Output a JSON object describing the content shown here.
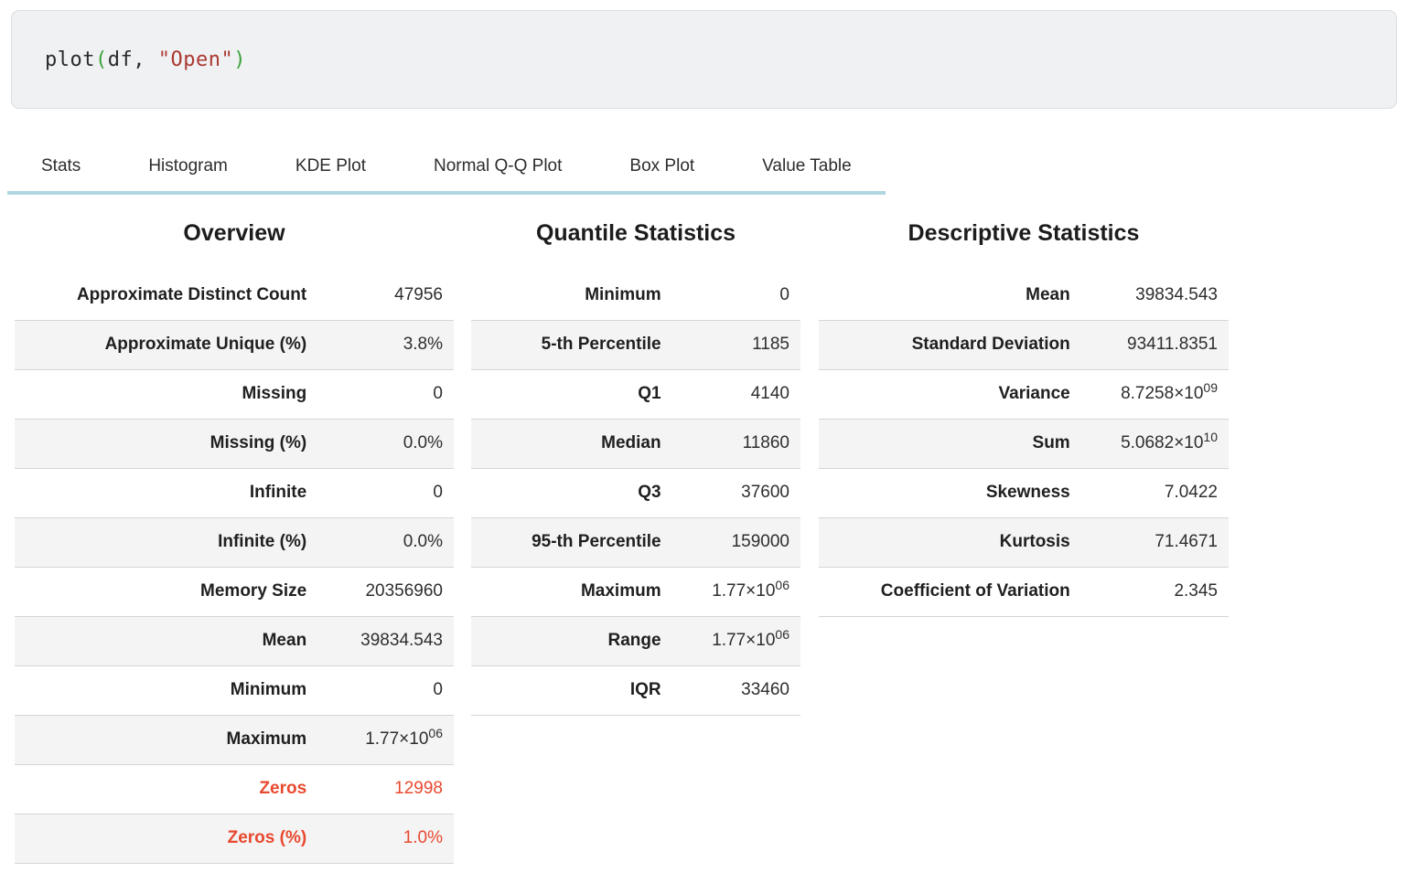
{
  "code_cell": {
    "tokens": [
      {
        "text": "plot",
        "type": "plain"
      },
      {
        "text": "(",
        "type": "paren"
      },
      {
        "text": "df",
        "type": "plain"
      },
      {
        "text": ", ",
        "type": "plain"
      },
      {
        "text": "\"Open\"",
        "type": "string"
      },
      {
        "text": ")",
        "type": "paren"
      }
    ]
  },
  "colors": {
    "code_plain": "#2a2a2a",
    "code_paren": "#3aa13a",
    "code_string": "#ac3931",
    "accent_red": "#e8492f",
    "tab_underline": "#b0d6e2",
    "row_stripe": "#f4f4f5"
  },
  "tabs": [
    {
      "label": "Stats"
    },
    {
      "label": "Histogram"
    },
    {
      "label": "KDE Plot"
    },
    {
      "label": "Normal Q-Q Plot"
    },
    {
      "label": "Box Plot"
    },
    {
      "label": "Value Table"
    }
  ],
  "columns": [
    {
      "title": "Overview",
      "rows": [
        {
          "label": "Approximate Distinct Count",
          "value": "47956"
        },
        {
          "label": "Approximate Unique (%)",
          "value": "3.8%"
        },
        {
          "label": "Missing",
          "value": "0"
        },
        {
          "label": "Missing (%)",
          "value": "0.0%"
        },
        {
          "label": "Infinite",
          "value": "0"
        },
        {
          "label": "Infinite (%)",
          "value": "0.0%"
        },
        {
          "label": "Memory Size",
          "value": "20356960"
        },
        {
          "label": "Mean",
          "value": "39834.543"
        },
        {
          "label": "Minimum",
          "value": "0"
        },
        {
          "label": "Maximum",
          "value": "1.77×10",
          "sup": "06"
        },
        {
          "label": "Zeros",
          "value": "12998",
          "accent": true
        },
        {
          "label": "Zeros (%)",
          "value": "1.0%",
          "accent": true
        }
      ]
    },
    {
      "title": "Quantile Statistics",
      "rows": [
        {
          "label": "Minimum",
          "value": "0"
        },
        {
          "label": "5-th Percentile",
          "value": "1185"
        },
        {
          "label": "Q1",
          "value": "4140"
        },
        {
          "label": "Median",
          "value": "11860"
        },
        {
          "label": "Q3",
          "value": "37600"
        },
        {
          "label": "95-th Percentile",
          "value": "159000"
        },
        {
          "label": "Maximum",
          "value": "1.77×10",
          "sup": "06"
        },
        {
          "label": "Range",
          "value": "1.77×10",
          "sup": "06"
        },
        {
          "label": "IQR",
          "value": "33460"
        }
      ]
    },
    {
      "title": "Descriptive Statistics",
      "rows": [
        {
          "label": "Mean",
          "value": "39834.543"
        },
        {
          "label": "Standard Deviation",
          "value": "93411.8351"
        },
        {
          "label": "Variance",
          "value": "8.7258×10",
          "sup": "09"
        },
        {
          "label": "Sum",
          "value": "5.0682×10",
          "sup": "10"
        },
        {
          "label": "Skewness",
          "value": "7.0422"
        },
        {
          "label": "Kurtosis",
          "value": "71.4671"
        },
        {
          "label": "Coefficient of Variation",
          "value": "2.345"
        }
      ]
    }
  ]
}
